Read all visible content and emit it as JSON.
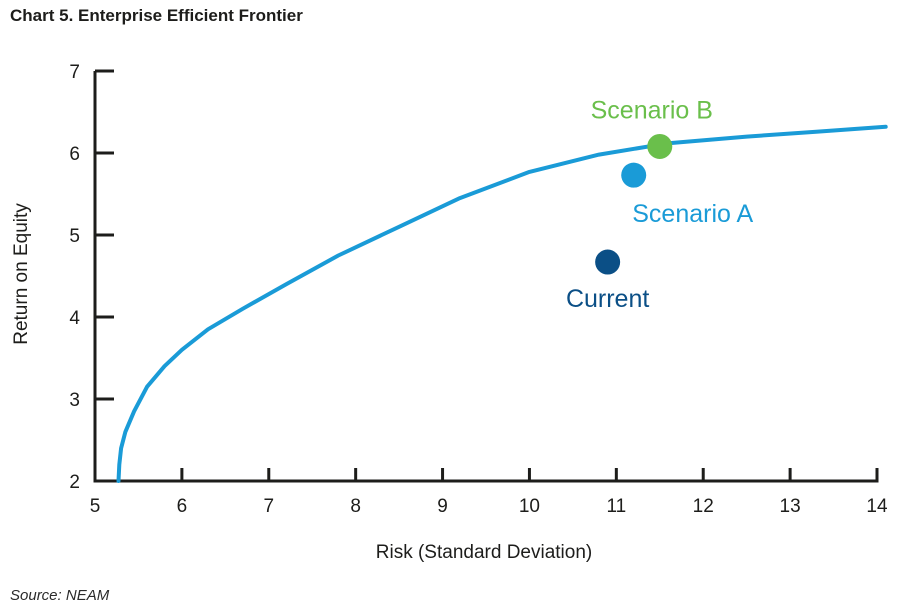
{
  "chart_data": {
    "type": "line",
    "title": "Chart 5. Enterprise Efficient Frontier",
    "xlabel": "Risk (Standard Deviation)",
    "ylabel": "Return on Equity",
    "xlim": [
      5,
      14
    ],
    "ylim": [
      2,
      7
    ],
    "x_ticks": [
      5,
      6,
      7,
      8,
      9,
      10,
      11,
      12,
      13,
      14
    ],
    "y_ticks": [
      2,
      3,
      4,
      5,
      6,
      7
    ],
    "grid": false,
    "series": [
      {
        "color": "#1a9bd7",
        "x": [
          5.27,
          5.28,
          5.3,
          5.35,
          5.45,
          5.6,
          5.8,
          6.0,
          6.3,
          6.7,
          7.2,
          7.8,
          8.5,
          9.2,
          10.0,
          10.8,
          11.6,
          12.5,
          13.3,
          14.1
        ],
        "y": [
          2.0,
          2.2,
          2.4,
          2.6,
          2.85,
          3.15,
          3.4,
          3.6,
          3.85,
          4.1,
          4.4,
          4.75,
          5.1,
          5.45,
          5.77,
          5.98,
          6.12,
          6.2,
          6.26,
          6.32
        ]
      }
    ],
    "points": [
      {
        "label": "Scenario B",
        "x": 11.5,
        "y": 6.08,
        "color": "#6abf4b"
      },
      {
        "label": "Scenario A",
        "x": 11.2,
        "y": 5.73,
        "color": "#1a9bd7"
      },
      {
        "label": "Current",
        "x": 10.9,
        "y": 4.67,
        "color": "#0b4f86"
      }
    ]
  },
  "source": "Source: NEAM"
}
